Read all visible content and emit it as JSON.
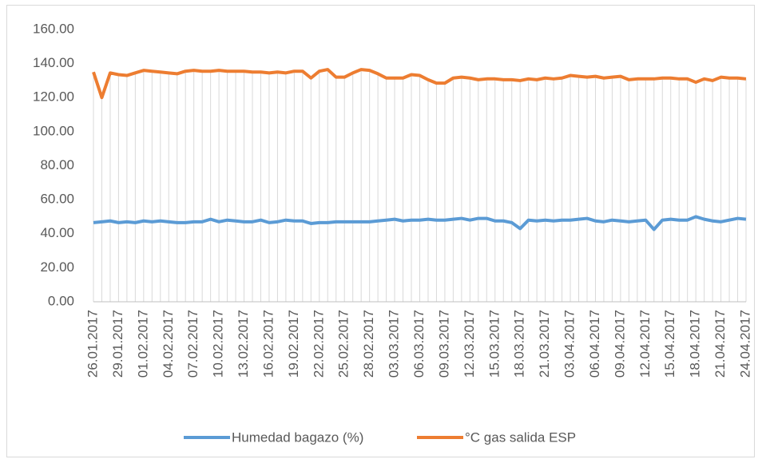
{
  "chart_data": {
    "type": "line",
    "categories": [
      "26.01.2017",
      null,
      null,
      "29.01.2017",
      null,
      null,
      "01.02.2017",
      null,
      null,
      "04.02.2017",
      null,
      null,
      "07.02.2017",
      null,
      null,
      "10.02.2017",
      null,
      null,
      "13.02.2017",
      null,
      null,
      "16.02.2017",
      null,
      null,
      "19.02.2017",
      null,
      null,
      "22.02.2017",
      null,
      null,
      "25.02.2017",
      null,
      null,
      "28.02.2017",
      null,
      null,
      "03.03.2017",
      null,
      null,
      "06.03.2017",
      null,
      null,
      "09.03.2017",
      null,
      null,
      "12.03.2017",
      null,
      null,
      "15.03.2017",
      null,
      null,
      "18.03.2017",
      null,
      null,
      "21.03.2017",
      null,
      null,
      "03.04.2017",
      null,
      null,
      "06.04.2017",
      null,
      null,
      "09.04.2017",
      null,
      null,
      "12.04.2017",
      null,
      null,
      "15.04.2017",
      null,
      null,
      "18.04.2017",
      null,
      null,
      "21.04.2017",
      null,
      null,
      "24.04.2017"
    ],
    "series": [
      {
        "name": "Humedad bagazo (%)",
        "color": "#5b9bd5",
        "values": [
          46.5,
          47,
          47.5,
          46.5,
          47,
          46.5,
          47.5,
          47,
          47.5,
          47,
          46.5,
          46.5,
          47,
          47,
          48.5,
          47,
          48,
          47.5,
          47,
          47,
          48,
          46.5,
          47,
          48,
          47.5,
          47.5,
          46,
          46.5,
          46.5,
          47,
          47,
          47,
          47,
          47,
          47.5,
          48,
          48.5,
          47.5,
          48,
          48,
          48.5,
          48,
          48,
          48.5,
          49,
          48,
          49,
          49,
          47.5,
          47.5,
          46.5,
          43,
          48,
          47.5,
          48,
          47.5,
          48,
          48,
          48.5,
          49,
          47.5,
          47,
          48,
          47.5,
          47,
          47.5,
          48,
          42.5,
          48,
          48.5,
          48,
          48,
          50,
          48.5,
          47.5,
          47,
          48,
          49,
          48.5
        ]
      },
      {
        "name": "°C gas salida ESP",
        "color": "#ed7d31",
        "values": [
          135,
          120,
          134.5,
          133.5,
          133,
          134.5,
          136,
          135.5,
          135,
          134.5,
          134,
          135.5,
          136,
          135.5,
          135.5,
          136,
          135.5,
          135.5,
          135.5,
          135,
          135,
          134.5,
          135,
          134.5,
          135.5,
          135.5,
          131.5,
          135.5,
          136.5,
          132,
          132,
          134.5,
          136.5,
          136,
          134,
          131.5,
          131.5,
          131.5,
          133.5,
          133,
          130.5,
          128.5,
          128.5,
          131.5,
          132,
          131.5,
          130.5,
          131,
          131,
          130.5,
          130.5,
          130,
          131,
          130.5,
          131.5,
          131,
          131.5,
          133,
          132.5,
          132,
          132.5,
          131.5,
          132,
          132.5,
          130.5,
          131,
          131,
          131,
          131.5,
          131.5,
          131,
          131,
          129,
          131,
          130,
          132,
          131.5,
          131.5,
          131
        ]
      }
    ],
    "ylim": [
      0,
      160
    ],
    "yticks": [
      {
        "value": 0,
        "label": "0.00"
      },
      {
        "value": 20,
        "label": "20.00"
      },
      {
        "value": 40,
        "label": "40.00"
      },
      {
        "value": 60,
        "label": "60.00"
      },
      {
        "value": 80,
        "label": "80.00"
      },
      {
        "value": 100,
        "label": "100.00"
      },
      {
        "value": 120,
        "label": "120.00"
      },
      {
        "value": 140,
        "label": "140.00"
      },
      {
        "value": 160,
        "label": "160.00"
      }
    ],
    "drop_lines": true,
    "legend": "bottom"
  }
}
